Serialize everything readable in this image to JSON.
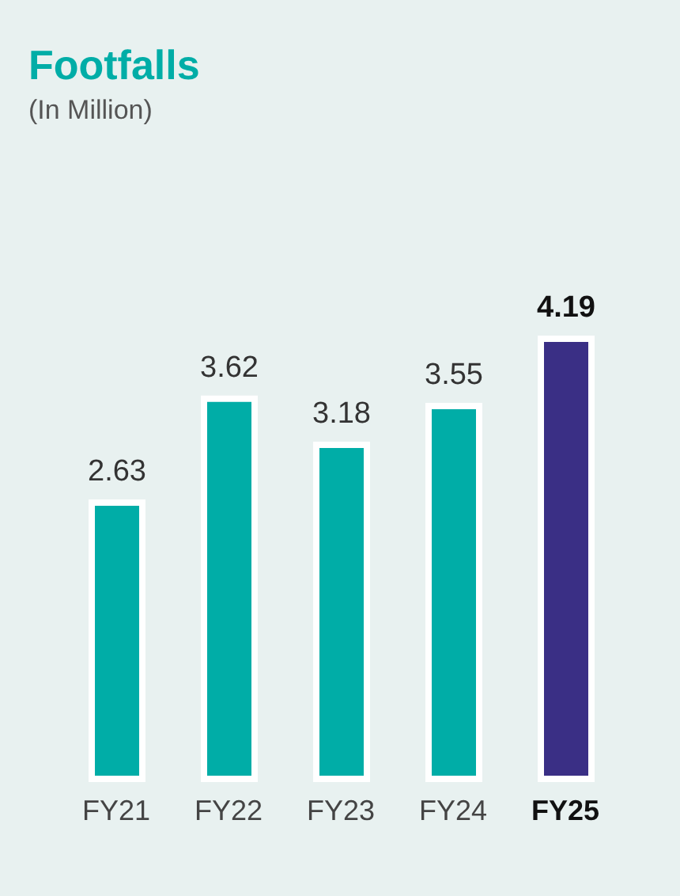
{
  "chart_data": {
    "type": "bar",
    "title": "Footfalls",
    "subtitle": "(In Million)",
    "categories": [
      "FY21",
      "FY22",
      "FY23",
      "FY24",
      "FY25"
    ],
    "values": [
      2.63,
      3.62,
      3.18,
      3.55,
      4.19
    ],
    "colors": [
      "#00ada7",
      "#00ada7",
      "#00ada7",
      "#00ada7",
      "#3a2f85"
    ],
    "data_labels": true
  }
}
